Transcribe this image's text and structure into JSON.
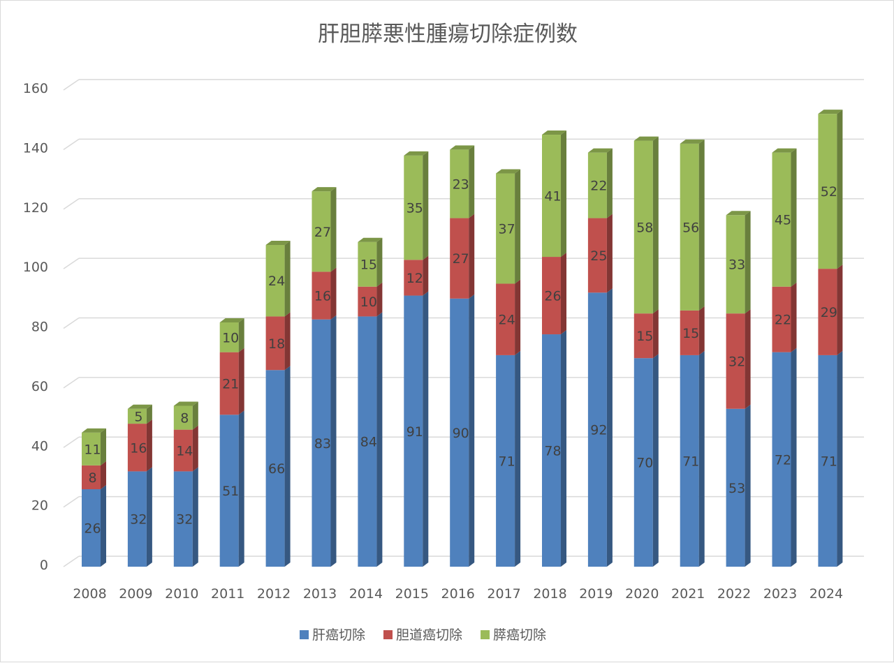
{
  "chart_data": {
    "type": "bar",
    "stacked": true,
    "style": "3d",
    "title": "肝胆膵悪性腫瘍切除症例数",
    "xlabel": "",
    "ylabel": "",
    "ylim": [
      0,
      160
    ],
    "yticks": [
      0,
      20,
      40,
      60,
      80,
      100,
      120,
      140,
      160
    ],
    "grid": true,
    "legend_position": "bottom",
    "categories": [
      "2008",
      "2009",
      "2010",
      "2011",
      "2012",
      "2013",
      "2014",
      "2015",
      "2016",
      "2017",
      "2018",
      "2019",
      "2020",
      "2021",
      "2022",
      "2023",
      "2024"
    ],
    "series": [
      {
        "name": "肝癌切除",
        "color": "#4f81bd",
        "values": [
          26,
          32,
          32,
          51,
          66,
          83,
          84,
          91,
          90,
          71,
          78,
          92,
          70,
          71,
          53,
          72,
          71
        ]
      },
      {
        "name": "胆道癌切除",
        "color": "#c0504d",
        "values": [
          8,
          16,
          14,
          21,
          18,
          16,
          10,
          12,
          27,
          24,
          26,
          25,
          15,
          15,
          32,
          22,
          29
        ]
      },
      {
        "name": "膵癌切除",
        "color": "#9bbb59",
        "values": [
          11,
          5,
          8,
          10,
          24,
          27,
          15,
          35,
          23,
          37,
          41,
          22,
          58,
          56,
          33,
          45,
          52
        ]
      }
    ]
  }
}
